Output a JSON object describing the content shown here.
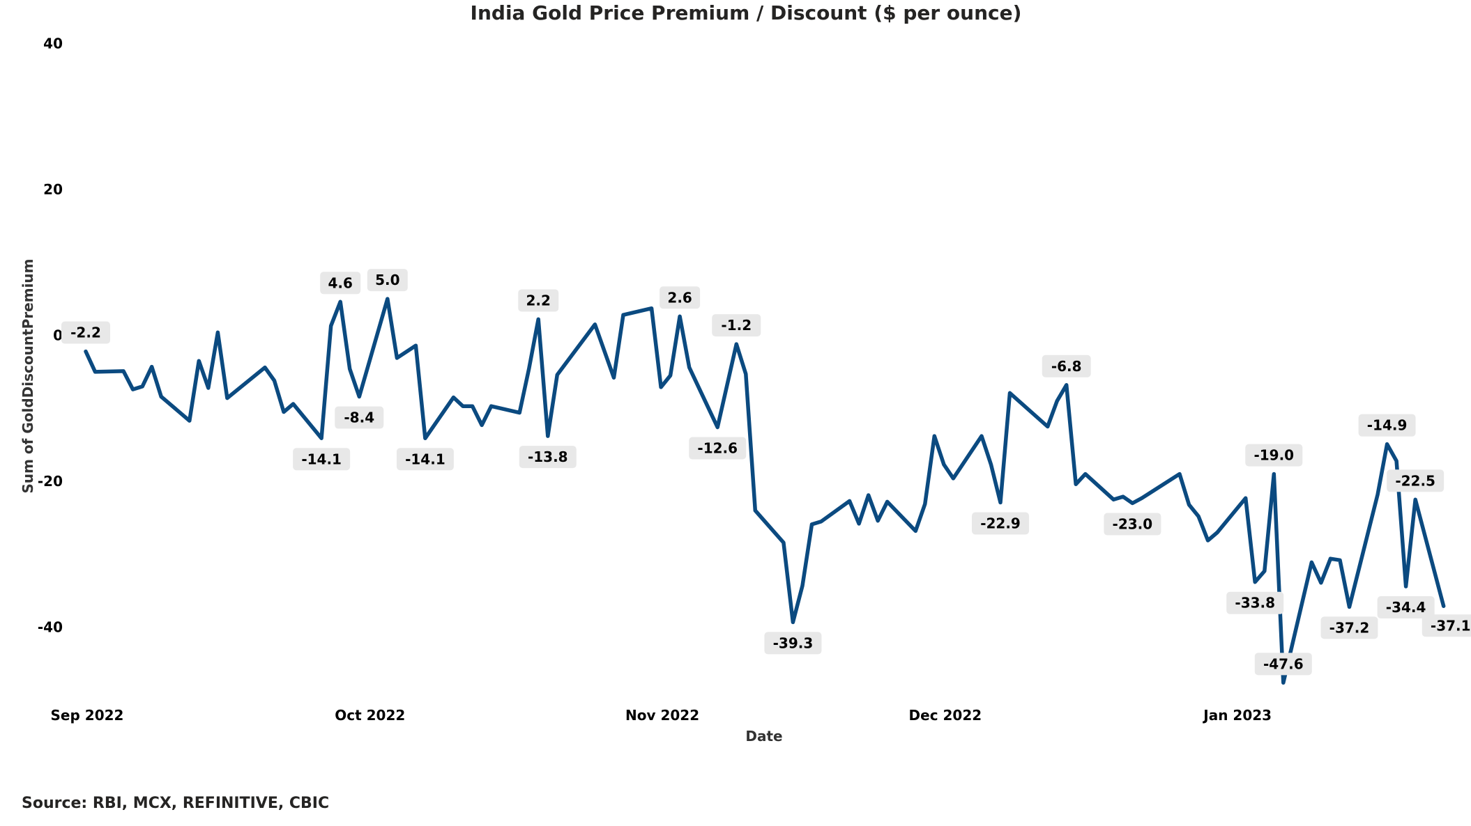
{
  "chart_data": {
    "type": "line",
    "title": "India Gold Price Premium / Discount ($ per ounce)",
    "xlabel": "Date",
    "ylabel": "Sum of GoldDiscountPremium",
    "ylim": [
      -50,
      40
    ],
    "yticks": [
      40,
      20,
      0,
      -20,
      -40
    ],
    "xticks": [
      {
        "date": "2022-09-01",
        "label": "Sep 2022"
      },
      {
        "date": "2022-10-01",
        "label": "Oct 2022"
      },
      {
        "date": "2022-11-01",
        "label": "Nov 2022"
      },
      {
        "date": "2022-12-01",
        "label": "Dec 2022"
      },
      {
        "date": "2023-01-01",
        "label": "Jan 2023"
      }
    ],
    "grid": false,
    "line_color": "#0b4a80",
    "label_bg": "#e8e8e8",
    "points": [
      [
        "2022-09-01",
        -2.2,
        "above"
      ],
      [
        "2022-09-02",
        -5.0
      ],
      [
        "2022-09-05",
        -4.9
      ],
      [
        "2022-09-06",
        -7.4
      ],
      [
        "2022-09-07",
        -7.0
      ],
      [
        "2022-09-08",
        -4.3
      ],
      [
        "2022-09-09",
        -8.4
      ],
      [
        "2022-09-12",
        -11.7
      ],
      [
        "2022-09-13",
        -3.5
      ],
      [
        "2022-09-14",
        -7.2
      ],
      [
        "2022-09-15",
        0.4
      ],
      [
        "2022-09-16",
        -8.6
      ],
      [
        "2022-09-20",
        -4.4
      ],
      [
        "2022-09-21",
        -6.2
      ],
      [
        "2022-09-22",
        -10.5
      ],
      [
        "2022-09-23",
        -9.4
      ],
      [
        "2022-09-26",
        -14.1,
        "below"
      ],
      [
        "2022-09-27",
        1.3
      ],
      [
        "2022-09-28",
        4.6,
        "above"
      ],
      [
        "2022-09-29",
        -4.6
      ],
      [
        "2022-09-30",
        -8.4,
        "below"
      ],
      [
        "2022-10-03",
        5.0,
        "above"
      ],
      [
        "2022-10-04",
        -3.1
      ],
      [
        "2022-10-06",
        -1.4
      ],
      [
        "2022-10-07",
        -14.1,
        "below"
      ],
      [
        "2022-10-10",
        -8.5
      ],
      [
        "2022-10-11",
        -9.7
      ],
      [
        "2022-10-12",
        -9.7
      ],
      [
        "2022-10-13",
        -12.3
      ],
      [
        "2022-10-14",
        -9.7
      ],
      [
        "2022-10-17",
        -10.6
      ],
      [
        "2022-10-18",
        -4.6
      ],
      [
        "2022-10-19",
        2.2,
        "above"
      ],
      [
        "2022-10-20",
        -13.8,
        "below"
      ],
      [
        "2022-10-21",
        -5.4
      ],
      [
        "2022-10-25",
        1.5
      ],
      [
        "2022-10-27",
        -5.8
      ],
      [
        "2022-10-28",
        2.8
      ],
      [
        "2022-10-31",
        3.7
      ],
      [
        "2022-11-01",
        -7.1
      ],
      [
        "2022-11-02",
        -5.5
      ],
      [
        "2022-11-03",
        2.6,
        "above"
      ],
      [
        "2022-11-04",
        -4.4
      ],
      [
        "2022-11-07",
        -12.6,
        "below"
      ],
      [
        "2022-11-09",
        -1.2,
        "above"
      ],
      [
        "2022-11-10",
        -5.3
      ],
      [
        "2022-11-11",
        -24.0
      ],
      [
        "2022-11-14",
        -28.4
      ],
      [
        "2022-11-15",
        -39.3,
        "below"
      ],
      [
        "2022-11-16",
        -34.3
      ],
      [
        "2022-11-17",
        -25.9
      ],
      [
        "2022-11-18",
        -25.5
      ],
      [
        "2022-11-21",
        -22.7
      ],
      [
        "2022-11-22",
        -25.8
      ],
      [
        "2022-11-23",
        -21.9
      ],
      [
        "2022-11-24",
        -25.4
      ],
      [
        "2022-11-25",
        -22.8
      ],
      [
        "2022-11-28",
        -26.8
      ],
      [
        "2022-11-29",
        -23.1
      ],
      [
        "2022-11-30",
        -13.8
      ],
      [
        "2022-12-01",
        -17.7
      ],
      [
        "2022-12-02",
        -19.6
      ],
      [
        "2022-12-05",
        -13.8
      ],
      [
        "2022-12-06",
        -17.7
      ],
      [
        "2022-12-07",
        -22.9,
        "below"
      ],
      [
        "2022-12-08",
        -7.9
      ],
      [
        "2022-12-12",
        -12.5
      ],
      [
        "2022-12-13",
        -9.0
      ],
      [
        "2022-12-14",
        -6.8,
        "above"
      ],
      [
        "2022-12-15",
        -20.4
      ],
      [
        "2022-12-16",
        -19.0
      ],
      [
        "2022-12-19",
        -22.5
      ],
      [
        "2022-12-20",
        -22.1
      ],
      [
        "2022-12-21",
        -23.0,
        "below"
      ],
      [
        "2022-12-22",
        -22.3
      ],
      [
        "2022-12-26",
        -19.0
      ],
      [
        "2022-12-27",
        -23.2
      ],
      [
        "2022-12-28",
        -24.8
      ],
      [
        "2022-12-29",
        -28.1
      ],
      [
        "2022-12-30",
        -27.0
      ],
      [
        "2023-01-02",
        -22.3
      ],
      [
        "2023-01-03",
        -33.8,
        "below"
      ],
      [
        "2023-01-04",
        -32.3
      ],
      [
        "2023-01-05",
        -19.0,
        "above"
      ],
      [
        "2023-01-06",
        -47.6,
        "above"
      ],
      [
        "2023-01-09",
        -31.1
      ],
      [
        "2023-01-10",
        -33.9
      ],
      [
        "2023-01-11",
        -30.6
      ],
      [
        "2023-01-12",
        -30.8
      ],
      [
        "2023-01-13",
        -37.2,
        "below"
      ],
      [
        "2023-01-16",
        -21.8
      ],
      [
        "2023-01-17",
        -14.9,
        "above"
      ],
      [
        "2023-01-18",
        -17.2
      ],
      [
        "2023-01-19",
        -34.4,
        "below"
      ],
      [
        "2023-01-20",
        -22.5,
        "above"
      ],
      [
        "2023-01-23",
        -37.1,
        "below-right"
      ]
    ]
  },
  "footer": {
    "source": "Source: RBI, MCX, REFINITIVE, CBIC"
  }
}
